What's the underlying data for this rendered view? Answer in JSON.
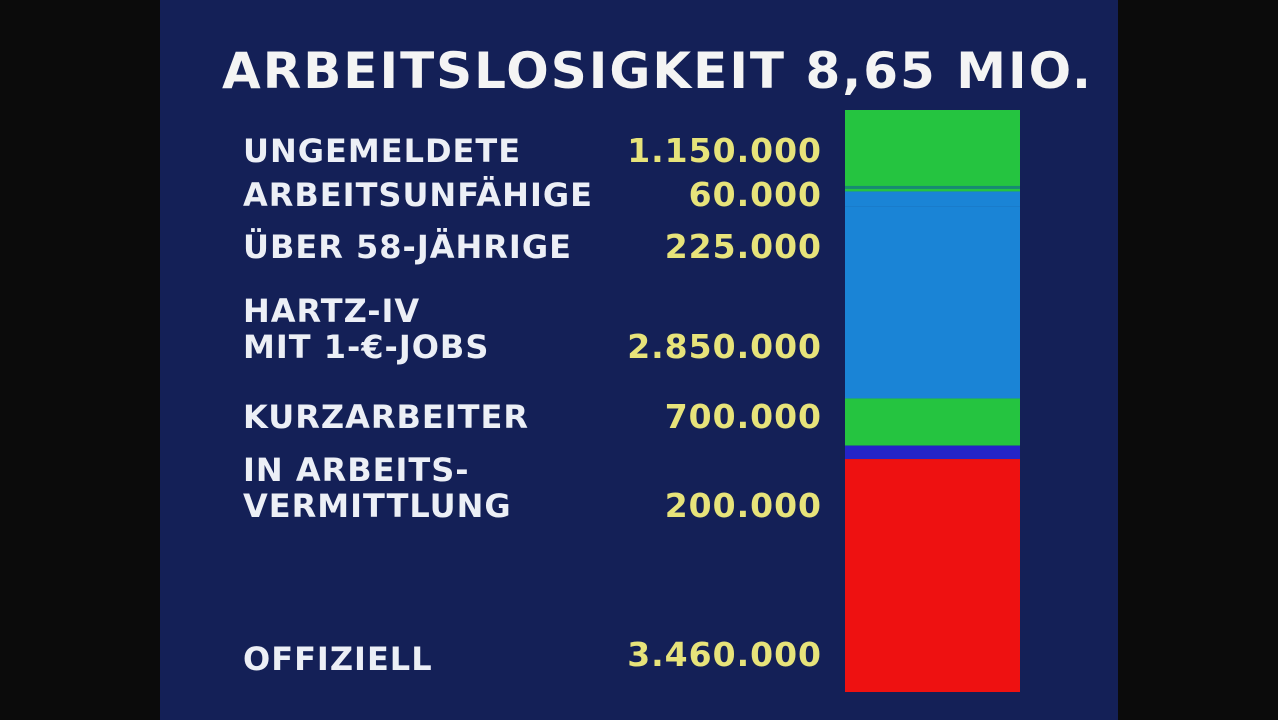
{
  "chart_data": {
    "type": "bar",
    "title": "ARBEITSLOSIGKEIT 8,65 MIO.",
    "stacking": "single stacked column, segments listed top to bottom",
    "categories": [
      "UNGEMELDETE",
      "ARBEITSUNFÄHIGE",
      "ÜBER 58-JÄHRIGE",
      "HARTZ-IV\nMIT 1-€-JOBS",
      "KURZARBEITER",
      "IN ARBEITS-\nVERMITTLUNG",
      "OFFIZIELL"
    ],
    "value_labels": [
      "1.150.000",
      "60.000",
      "225.000",
      "2.850.000",
      "700.000",
      "200.000",
      "3.460.000"
    ],
    "values": [
      1150000,
      60000,
      225000,
      2850000,
      700000,
      200000,
      3460000
    ],
    "segment_colors": [
      "#25c440",
      "#25c440",
      "#1a84d6",
      "#1a84d6",
      "#25c440",
      "#2424c8",
      "#ee1111"
    ],
    "ylim": [
      0,
      8645000
    ],
    "legend": "none",
    "grid": false
  },
  "colors": {
    "background": "#142057",
    "outer": "#0b0b0b",
    "label_text": "#eceff6",
    "value_text": "#e7e37a",
    "segment_divider": "#178a72"
  }
}
